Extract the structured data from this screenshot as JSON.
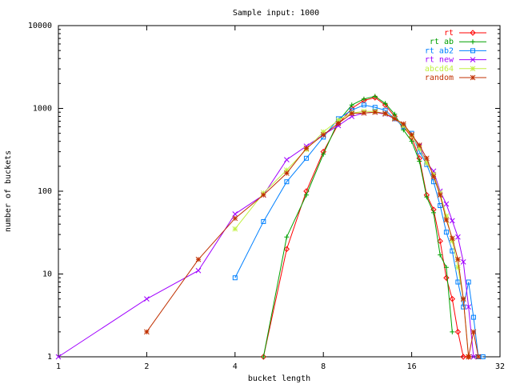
{
  "chart_data": {
    "type": "line",
    "title": "Sample input: 1000",
    "xlabel": "bucket length",
    "ylabel": "number of buckets",
    "x_scale": "log2",
    "y_scale": "log10",
    "xlim": [
      1,
      32
    ],
    "ylim": [
      1,
      10000
    ],
    "x_ticks": [
      1,
      2,
      4,
      8,
      16,
      32
    ],
    "y_ticks": [
      1,
      10,
      100,
      1000,
      10000
    ],
    "grid": false,
    "legend_position": "top-right",
    "series": [
      {
        "name": "rt",
        "color": "#ff0000",
        "marker": "diamond",
        "x": [
          5,
          6,
          7,
          8,
          9,
          10,
          11,
          12,
          13,
          14,
          15,
          16,
          17,
          18,
          19,
          20,
          21,
          22,
          23,
          24,
          25
        ],
        "y": [
          1,
          20,
          100,
          300,
          650,
          1000,
          1250,
          1350,
          1100,
          800,
          600,
          450,
          250,
          90,
          60,
          25,
          9,
          5,
          2,
          1,
          1
        ]
      },
      {
        "name": "rt ab",
        "color": "#00a000",
        "marker": "plus",
        "x": [
          5,
          6,
          7,
          8,
          9,
          10,
          11,
          12,
          13,
          14,
          15,
          16,
          17,
          18,
          19,
          20,
          21,
          22
        ],
        "y": [
          1,
          28,
          90,
          280,
          700,
          1100,
          1300,
          1400,
          1150,
          850,
          550,
          400,
          230,
          85,
          55,
          17,
          12,
          2
        ]
      },
      {
        "name": "rt ab2",
        "color": "#0080ff",
        "marker": "square",
        "x": [
          4,
          5,
          6,
          7,
          8,
          9,
          10,
          11,
          12,
          13,
          14,
          15,
          16,
          17,
          18,
          19,
          20,
          21,
          22,
          23,
          24,
          25,
          26,
          27,
          28
        ],
        "y": [
          9,
          43,
          130,
          250,
          450,
          750,
          950,
          1100,
          1030,
          950,
          750,
          600,
          500,
          300,
          210,
          130,
          67,
          32,
          19,
          8,
          4,
          8,
          3,
          1,
          1
        ]
      },
      {
        "name": "rt new",
        "color": "#a000ff",
        "marker": "x",
        "x": [
          1,
          2,
          3,
          4,
          5,
          6,
          7,
          8,
          9,
          10,
          11,
          12,
          13,
          14,
          15,
          16,
          17,
          18,
          19,
          20,
          21,
          22,
          23,
          24,
          25,
          26
        ],
        "y": [
          1,
          5,
          11,
          53,
          90,
          240,
          350,
          480,
          620,
          800,
          880,
          900,
          850,
          750,
          620,
          480,
          350,
          220,
          175,
          100,
          70,
          44,
          28,
          14,
          4,
          1
        ]
      },
      {
        "name": "abcd64",
        "color": "#c0f040",
        "marker": "star",
        "x": [
          4,
          5,
          6,
          7,
          8,
          9,
          10,
          11,
          12,
          13,
          14,
          15,
          16,
          17,
          18,
          19,
          20,
          21,
          22,
          23,
          24,
          25
        ],
        "y": [
          35,
          95,
          180,
          320,
          520,
          720,
          880,
          920,
          920,
          860,
          760,
          620,
          470,
          330,
          220,
          160,
          95,
          50,
          25,
          12,
          5,
          1
        ]
      },
      {
        "name": "random",
        "color": "#c03000",
        "marker": "star",
        "x": [
          2,
          3,
          4,
          5,
          6,
          7,
          8,
          9,
          10,
          11,
          12,
          13,
          14,
          15,
          16,
          17,
          18,
          19,
          20,
          21,
          22,
          23,
          24,
          25,
          26,
          27
        ],
        "y": [
          2,
          15,
          47,
          90,
          165,
          330,
          480,
          660,
          870,
          880,
          900,
          870,
          750,
          650,
          480,
          360,
          250,
          150,
          90,
          45,
          27,
          15,
          5,
          1,
          2,
          1
        ]
      }
    ]
  }
}
